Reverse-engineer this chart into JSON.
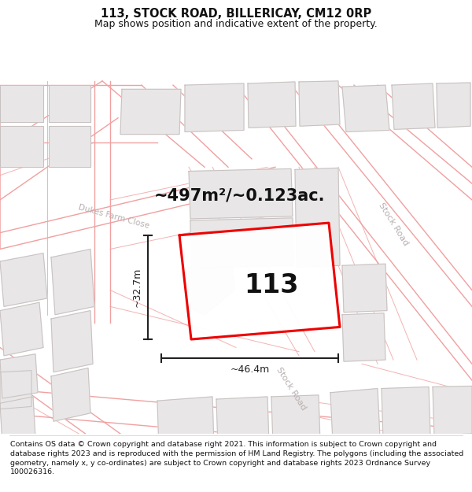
{
  "title": "113, STOCK ROAD, BILLERICAY, CM12 0RP",
  "subtitle": "Map shows position and indicative extent of the property.",
  "footer": "Contains OS data © Crown copyright and database right 2021. This information is subject to Crown copyright and database rights 2023 and is reproduced with the permission of HM Land Registry. The polygons (including the associated geometry, namely x, y co-ordinates) are subject to Crown copyright and database rights 2023 Ordnance Survey 100026316.",
  "area_label": "~497m²/~0.123ac.",
  "width_label": "~46.4m",
  "height_label": "~32.7m",
  "plot_number": "113",
  "bg_color": "#f8f6f6",
  "map_bg": "#f8f6f6",
  "plot_color": "#ee0000",
  "road_line_color": "#f0a0a0",
  "road_text_color": "#b8b0b0",
  "title_color": "#111111",
  "footer_color": "#111111",
  "dim_color": "#222222",
  "building_fill": "#e8e6e6",
  "building_outline": "#c8c0c0",
  "title_fontsize": 10.5,
  "subtitle_fontsize": 9,
  "footer_fontsize": 6.8,
  "area_fontsize": 15,
  "plot_number_fontsize": 24,
  "dim_fontsize": 9
}
